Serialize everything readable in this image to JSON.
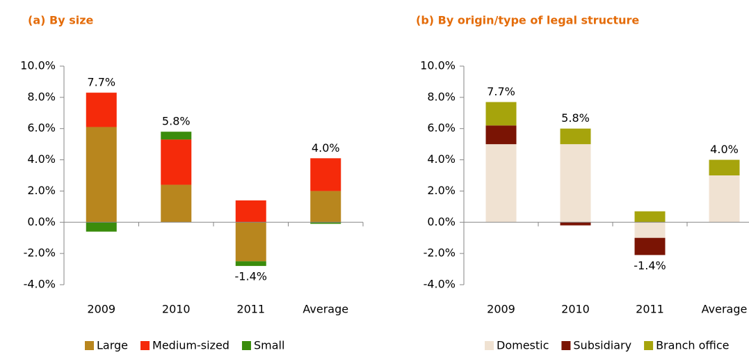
{
  "chart_data": [
    {
      "type": "stacked-bar",
      "title": "(a) By size",
      "categories": [
        "2009",
        "2010",
        "2011",
        "Average"
      ],
      "series": [
        {
          "name": "Large",
          "color": "#b8861e",
          "values": [
            6.1,
            2.4,
            -2.5,
            2.0
          ]
        },
        {
          "name": "Medium-sized",
          "color": "#f52a0a",
          "values": [
            2.2,
            2.9,
            1.4,
            2.1
          ]
        },
        {
          "name": "Small",
          "color": "#3a8c0c",
          "values": [
            -0.6,
            0.5,
            -0.3,
            -0.1
          ]
        }
      ],
      "totals": [
        7.7,
        5.8,
        -1.4,
        4.0
      ],
      "total_labels": [
        "7.7%",
        "5.8%",
        "-1.4%",
        "4.0%"
      ],
      "ylim": [
        -4,
        10
      ],
      "yticks": [
        {
          "value": -4,
          "label": "-4.0%"
        },
        {
          "value": -2,
          "label": "-2.0%"
        },
        {
          "value": 0,
          "label": "0.0%"
        },
        {
          "value": 2,
          "label": "2.0%"
        },
        {
          "value": 4,
          "label": "4.0%"
        },
        {
          "value": 6,
          "label": "6.0%"
        },
        {
          "value": 8,
          "label": "8.0%"
        },
        {
          "value": 10,
          "label": "10.0%"
        }
      ]
    },
    {
      "type": "stacked-bar",
      "title": "(b) By origin/type of legal structure",
      "categories": [
        "2009",
        "2010",
        "2011",
        "Average"
      ],
      "series": [
        {
          "name": "Domestic",
          "color": "#f0e2d2",
          "values": [
            5.0,
            5.0,
            -1.0,
            3.0
          ]
        },
        {
          "name": "Subsidiary",
          "color": "#7a1404",
          "values": [
            1.2,
            -0.2,
            -1.1,
            0.0
          ]
        },
        {
          "name": "Branch office",
          "color": "#a6a40c",
          "values": [
            1.5,
            1.0,
            0.7,
            1.0
          ]
        }
      ],
      "totals": [
        7.7,
        5.8,
        -1.4,
        4.0
      ],
      "total_labels": [
        "7.7%",
        "5.8%",
        "-1.4%",
        "4.0%"
      ],
      "ylim": [
        -4,
        10
      ],
      "yticks": [
        {
          "value": -4,
          "label": "-4.0%"
        },
        {
          "value": -2,
          "label": "-2.0%"
        },
        {
          "value": 0,
          "label": "0.0%"
        },
        {
          "value": 2,
          "label": "2.0%"
        },
        {
          "value": 4,
          "label": "4.0%"
        },
        {
          "value": 6,
          "label": "6.0%"
        },
        {
          "value": 8,
          "label": "8.0%"
        },
        {
          "value": 10,
          "label": "10.0%"
        }
      ]
    }
  ]
}
